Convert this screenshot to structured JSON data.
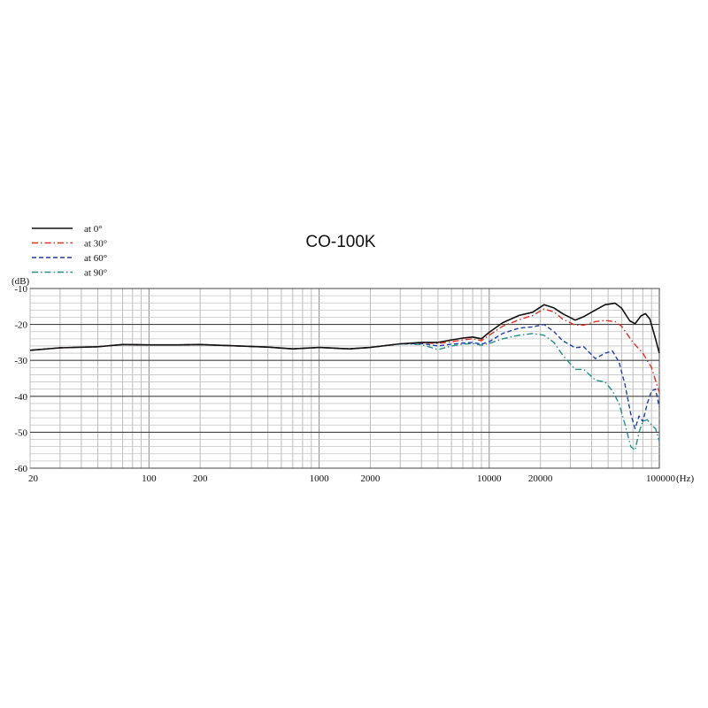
{
  "chart_data": {
    "type": "line",
    "title": "CO-100K",
    "ylabel": "(dB)",
    "xunit": "(Hz)",
    "xscale": "log",
    "xlim": [
      20,
      100000
    ],
    "ylim": [
      -60,
      -10
    ],
    "yticks": [
      {
        "value": -10,
        "label": "-10"
      },
      {
        "value": -20,
        "label": "-20"
      },
      {
        "value": -30,
        "label": "-30"
      },
      {
        "value": -40,
        "label": "-40"
      },
      {
        "value": -50,
        "label": "-50"
      },
      {
        "value": -60,
        "label": "-60"
      }
    ],
    "xticks": [
      {
        "value": 20,
        "label": "20"
      },
      {
        "value": 100,
        "label": "100"
      },
      {
        "value": 200,
        "label": "200"
      },
      {
        "value": 1000,
        "label": "1000"
      },
      {
        "value": 2000,
        "label": "2000"
      },
      {
        "value": 10000,
        "label": "10000"
      },
      {
        "value": 20000,
        "label": "20000"
      },
      {
        "value": 100000,
        "label": "100000"
      }
    ],
    "grid": true,
    "legend_position": "top-left",
    "series": [
      {
        "name": "at 0°",
        "color": "#111111",
        "dash": "solid",
        "points": [
          [
            20,
            -27.2
          ],
          [
            30,
            -26.5
          ],
          [
            50,
            -26.2
          ],
          [
            70,
            -25.6
          ],
          [
            100,
            -25.7
          ],
          [
            150,
            -25.7
          ],
          [
            200,
            -25.6
          ],
          [
            300,
            -25.9
          ],
          [
            500,
            -26.3
          ],
          [
            700,
            -26.8
          ],
          [
            1000,
            -26.4
          ],
          [
            1500,
            -26.8
          ],
          [
            2000,
            -26.4
          ],
          [
            3000,
            -25.4
          ],
          [
            4000,
            -25.0
          ],
          [
            5000,
            -25.0
          ],
          [
            6000,
            -24.3
          ],
          [
            7000,
            -23.8
          ],
          [
            8000,
            -23.5
          ],
          [
            9000,
            -24.0
          ],
          [
            10000,
            -22.2
          ],
          [
            12000,
            -19.5
          ],
          [
            15000,
            -17.5
          ],
          [
            18000,
            -16.6
          ],
          [
            21000,
            -14.5
          ],
          [
            24000,
            -15.4
          ],
          [
            27000,
            -17.0
          ],
          [
            32000,
            -18.8
          ],
          [
            36000,
            -17.8
          ],
          [
            42000,
            -16.0
          ],
          [
            48000,
            -14.5
          ],
          [
            55000,
            -14.1
          ],
          [
            60000,
            -15.5
          ],
          [
            67000,
            -19.0
          ],
          [
            72000,
            -19.8
          ],
          [
            78000,
            -17.6
          ],
          [
            83000,
            -17.0
          ],
          [
            88000,
            -18.5
          ],
          [
            95000,
            -24.0
          ],
          [
            100000,
            -28.0
          ]
        ]
      },
      {
        "name": "at 30°",
        "color": "#e0301e",
        "dash": "dashdot",
        "points": [
          [
            20,
            -27.2
          ],
          [
            30,
            -26.5
          ],
          [
            50,
            -26.2
          ],
          [
            70,
            -25.6
          ],
          [
            100,
            -25.7
          ],
          [
            150,
            -25.7
          ],
          [
            200,
            -25.6
          ],
          [
            300,
            -25.9
          ],
          [
            500,
            -26.3
          ],
          [
            700,
            -26.8
          ],
          [
            1000,
            -26.4
          ],
          [
            1500,
            -26.8
          ],
          [
            2000,
            -26.4
          ],
          [
            3000,
            -25.4
          ],
          [
            4000,
            -25.1
          ],
          [
            5000,
            -25.3
          ],
          [
            6000,
            -24.8
          ],
          [
            7000,
            -24.3
          ],
          [
            8000,
            -24.0
          ],
          [
            9000,
            -24.5
          ],
          [
            10000,
            -23.0
          ],
          [
            12000,
            -20.5
          ],
          [
            15000,
            -18.7
          ],
          [
            18000,
            -17.5
          ],
          [
            21000,
            -15.7
          ],
          [
            24000,
            -16.5
          ],
          [
            27000,
            -18.5
          ],
          [
            32000,
            -20.2
          ],
          [
            36000,
            -20.2
          ],
          [
            42000,
            -19.2
          ],
          [
            48000,
            -18.9
          ],
          [
            55000,
            -19.2
          ],
          [
            60000,
            -20.5
          ],
          [
            70000,
            -25.0
          ],
          [
            80000,
            -28.0
          ],
          [
            90000,
            -32.0
          ],
          [
            100000,
            -39.0
          ]
        ]
      },
      {
        "name": "at 60°",
        "color": "#1f3fae",
        "dash": "dashed",
        "points": [
          [
            20,
            -27.2
          ],
          [
            30,
            -26.5
          ],
          [
            50,
            -26.2
          ],
          [
            70,
            -25.6
          ],
          [
            100,
            -25.7
          ],
          [
            150,
            -25.7
          ],
          [
            200,
            -25.6
          ],
          [
            300,
            -25.9
          ],
          [
            500,
            -26.3
          ],
          [
            700,
            -26.8
          ],
          [
            1000,
            -26.4
          ],
          [
            1500,
            -26.8
          ],
          [
            2000,
            -26.4
          ],
          [
            3000,
            -25.4
          ],
          [
            4000,
            -25.3
          ],
          [
            5000,
            -26.0
          ],
          [
            6000,
            -25.5
          ],
          [
            7000,
            -25.2
          ],
          [
            8000,
            -25.0
          ],
          [
            9000,
            -25.5
          ],
          [
            10000,
            -24.8
          ],
          [
            12000,
            -22.5
          ],
          [
            15000,
            -21.0
          ],
          [
            18000,
            -20.7
          ],
          [
            21000,
            -20.0
          ],
          [
            24000,
            -22.0
          ],
          [
            27000,
            -24.5
          ],
          [
            32000,
            -26.5
          ],
          [
            36000,
            -26.2
          ],
          [
            42000,
            -29.5
          ],
          [
            48000,
            -28.0
          ],
          [
            53000,
            -27.4
          ],
          [
            58000,
            -30.5
          ],
          [
            63000,
            -37.0
          ],
          [
            68000,
            -45.0
          ],
          [
            72000,
            -49.0
          ],
          [
            76000,
            -45.5
          ],
          [
            80000,
            -47.0
          ],
          [
            85000,
            -42.0
          ],
          [
            90000,
            -38.5
          ],
          [
            95000,
            -38.0
          ],
          [
            100000,
            -43.0
          ]
        ]
      },
      {
        "name": "at 90°",
        "color": "#1f8f8a",
        "dash": "dashdot",
        "points": [
          [
            20,
            -27.2
          ],
          [
            30,
            -26.5
          ],
          [
            50,
            -26.2
          ],
          [
            70,
            -25.6
          ],
          [
            100,
            -25.7
          ],
          [
            150,
            -25.7
          ],
          [
            200,
            -25.6
          ],
          [
            300,
            -25.9
          ],
          [
            500,
            -26.3
          ],
          [
            700,
            -26.8
          ],
          [
            1000,
            -26.4
          ],
          [
            1500,
            -26.8
          ],
          [
            2000,
            -26.4
          ],
          [
            3000,
            -25.4
          ],
          [
            4000,
            -25.6
          ],
          [
            5000,
            -27.0
          ],
          [
            6000,
            -26.0
          ],
          [
            7000,
            -25.5
          ],
          [
            8000,
            -25.3
          ],
          [
            9000,
            -25.8
          ],
          [
            10000,
            -25.3
          ],
          [
            12000,
            -24.0
          ],
          [
            15000,
            -23.0
          ],
          [
            18000,
            -22.5
          ],
          [
            21000,
            -23.0
          ],
          [
            24000,
            -25.0
          ],
          [
            27000,
            -28.5
          ],
          [
            32000,
            -32.5
          ],
          [
            36000,
            -32.5
          ],
          [
            42000,
            -35.5
          ],
          [
            48000,
            -36.0
          ],
          [
            53000,
            -38.5
          ],
          [
            58000,
            -42.0
          ],
          [
            63000,
            -48.0
          ],
          [
            68000,
            -54.0
          ],
          [
            72000,
            -55.0
          ],
          [
            76000,
            -50.0
          ],
          [
            80000,
            -47.0
          ],
          [
            85000,
            -46.5
          ],
          [
            90000,
            -48.0
          ],
          [
            95000,
            -49.0
          ],
          [
            100000,
            -52.5
          ]
        ]
      }
    ]
  }
}
